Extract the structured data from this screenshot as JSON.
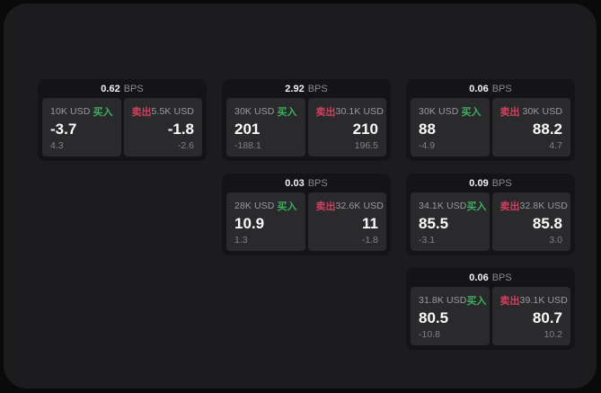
{
  "labels": {
    "bps_unit": "BPS",
    "buy": "买入",
    "sell": "卖出"
  },
  "colors": {
    "buy_green": "#3caf5f",
    "sell_red": "#d0405e",
    "panel_bg": "#2a2a2d",
    "card_bg": "#141416",
    "page_bg": "#1c1c1e"
  },
  "cards": [
    {
      "bps": "0.62",
      "buy": {
        "amount": "10K USD",
        "price": "-3.7",
        "sub": "4.3"
      },
      "sell": {
        "amount": "5.5K USD",
        "price": "-1.8",
        "sub": "-2.6"
      }
    },
    {
      "bps": "2.92",
      "buy": {
        "amount": "30K USD",
        "price": "201",
        "sub": "-188.1"
      },
      "sell": {
        "amount": "30.1K USD",
        "price": "210",
        "sub": "196.5"
      }
    },
    {
      "bps": "0.06",
      "buy": {
        "amount": "30K USD",
        "price": "88",
        "sub": "-4.9"
      },
      "sell": {
        "amount": "30K USD",
        "price": "88.2",
        "sub": "4.7"
      }
    },
    {
      "bps": "0.03",
      "buy": {
        "amount": "28K USD",
        "price": "10.9",
        "sub": "1.3"
      },
      "sell": {
        "amount": "32.6K USD",
        "price": "11",
        "sub": "-1.8"
      }
    },
    {
      "bps": "0.09",
      "buy": {
        "amount": "34.1K USD",
        "price": "85.5",
        "sub": "-3.1"
      },
      "sell": {
        "amount": "32.8K USD",
        "price": "85.8",
        "sub": "3.0"
      }
    },
    {
      "bps": "0.06",
      "buy": {
        "amount": "31.8K USD",
        "price": "80.5",
        "sub": "-10.8"
      },
      "sell": {
        "amount": "39.1K USD",
        "price": "80.7",
        "sub": "10.2"
      }
    }
  ]
}
